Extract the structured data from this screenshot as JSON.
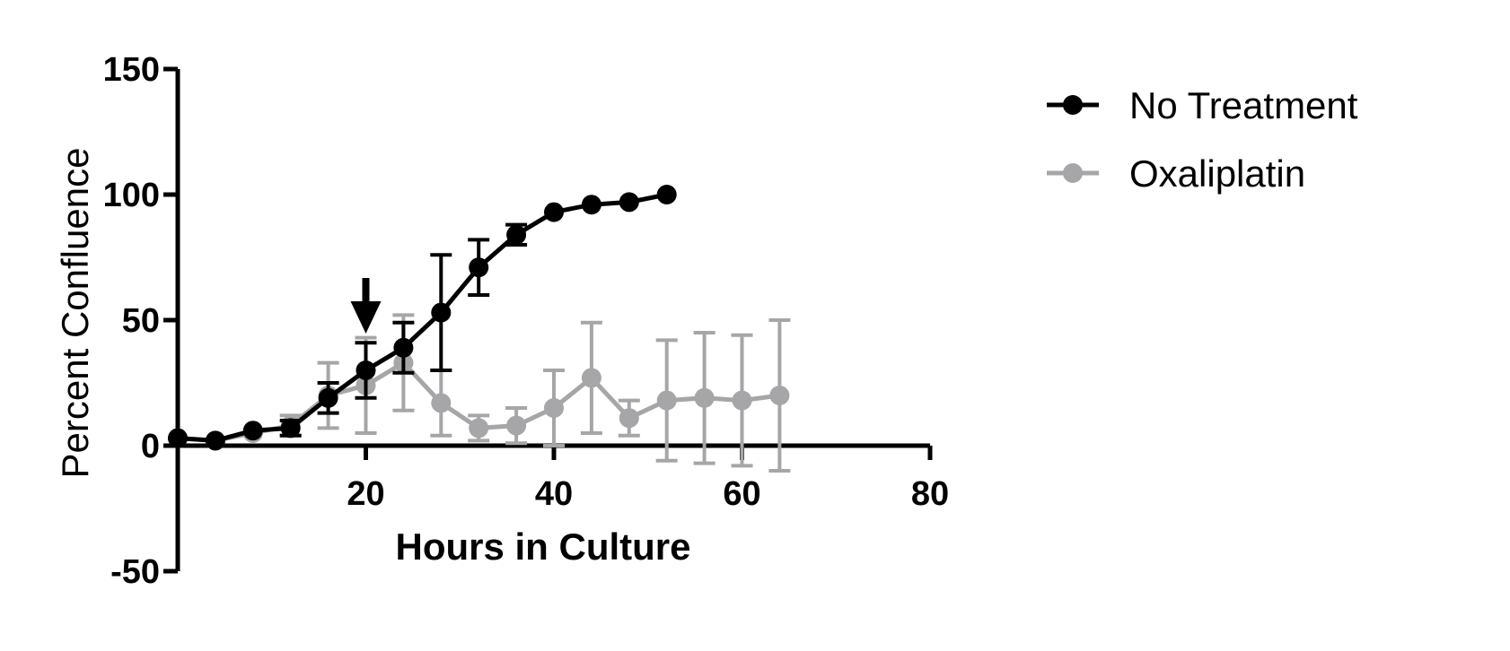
{
  "chart_data": {
    "type": "line",
    "title": "",
    "xlabel": "Hours in Culture",
    "ylabel": "Percent Confluence",
    "xlim": [
      0,
      80
    ],
    "ylim": [
      -50,
      150
    ],
    "xticks": [
      20,
      40,
      60,
      80
    ],
    "yticks": [
      -50,
      0,
      50,
      100,
      150
    ],
    "xtick_labels": [
      "20",
      "40",
      "60",
      "80"
    ],
    "ytick_labels": [
      "-50",
      "0",
      "50",
      "100",
      "150"
    ],
    "grid": false,
    "legend_position": "top-right",
    "annotations": [
      {
        "type": "arrow",
        "x": 20,
        "pointing": "down"
      }
    ],
    "series": [
      {
        "name": "No Treatment",
        "color": "#000000",
        "x": [
          0,
          4,
          8,
          12,
          16,
          20,
          24,
          28,
          32,
          36,
          40,
          44,
          48,
          52
        ],
        "y": [
          3,
          2,
          6,
          7,
          19,
          30,
          39,
          53,
          71,
          84,
          93,
          96,
          97,
          100
        ],
        "err": [
          0,
          0,
          0,
          3,
          6,
          11,
          10,
          23,
          11,
          4,
          0,
          0,
          0,
          0
        ]
      },
      {
        "name": "Oxaliplatin",
        "color": "#a6a6a8",
        "x": [
          0,
          4,
          8,
          12,
          16,
          20,
          24,
          28,
          32,
          36,
          40,
          44,
          48,
          52,
          56,
          60,
          64
        ],
        "y": [
          3,
          2,
          5,
          8,
          20,
          24,
          33,
          17,
          7,
          8,
          15,
          27,
          11,
          18,
          19,
          18,
          20
        ],
        "err": [
          0,
          0,
          0,
          4,
          13,
          19,
          19,
          13,
          5,
          7,
          15,
          22,
          7,
          24,
          26,
          26,
          30
        ]
      }
    ]
  }
}
